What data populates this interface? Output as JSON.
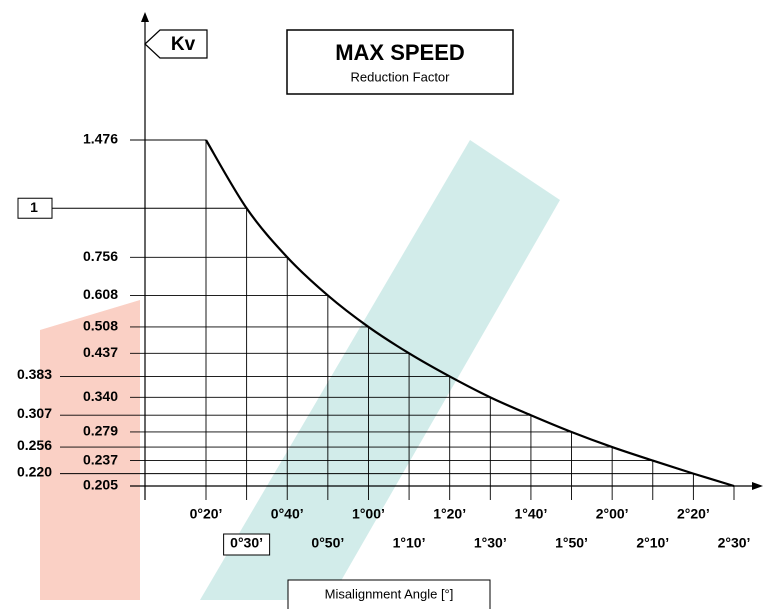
{
  "chart_data": {
    "type": "line",
    "title": "MAX SPEED",
    "subtitle": "Reduction Factor",
    "y_label": "Kv",
    "x_label": "Misalignment Angle [°]",
    "categories": [
      "0°20’",
      "0°30’",
      "0°40’",
      "0°50’",
      "1°00’",
      "1°10’",
      "1°20’",
      "1°30’",
      "1°40’",
      "1°50’",
      "2°00’",
      "2°10’",
      "2°20’",
      "2°30’"
    ],
    "series": [
      {
        "name": "Kv",
        "color": "#000000",
        "values": [
          1.476,
          1,
          0.756,
          0.608,
          0.508,
          0.437,
          0.383,
          0.34,
          0.307,
          0.279,
          0.256,
          0.237,
          0.22,
          0.205
        ]
      }
    ],
    "ylim": [
      0.205,
      1.476
    ],
    "log_y": true,
    "yticks": [
      1.476,
      1,
      0.756,
      0.608,
      0.508,
      0.437,
      0.383,
      {
        "value": 0.34,
        "label": "0.340"
      },
      0.307,
      0.279,
      0.256,
      0.237,
      {
        "value": 0.22,
        "label": "0.220"
      },
      0.205
    ],
    "grid": true
  }
}
